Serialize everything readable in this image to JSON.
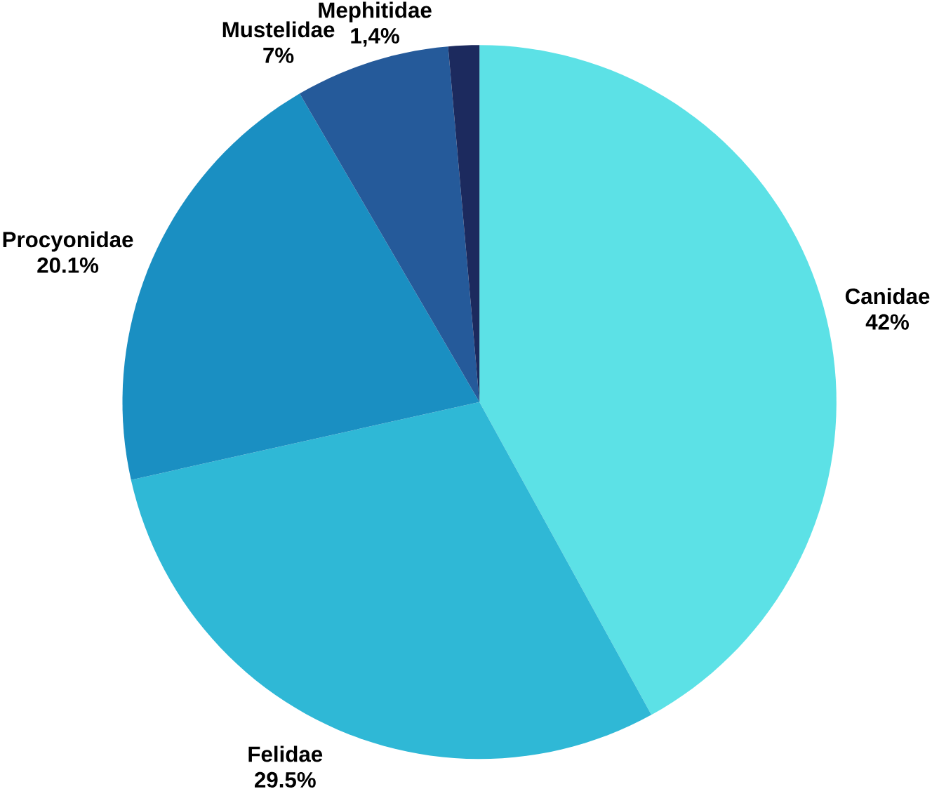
{
  "chart_data": {
    "type": "pie",
    "categories": [
      "Canidae",
      "Felidae",
      "Procyonidae",
      "Mustelidae",
      "Mephitidae"
    ],
    "values": [
      42,
      29.5,
      20.1,
      7,
      1.4
    ],
    "value_labels": [
      "42%",
      "29.5%",
      "20.1%",
      "7%",
      "1,4%"
    ],
    "colors": [
      "#5ce1e6",
      "#2fb8d6",
      "#1a8fc2",
      "#255a9a",
      "#1c2a5e"
    ]
  }
}
